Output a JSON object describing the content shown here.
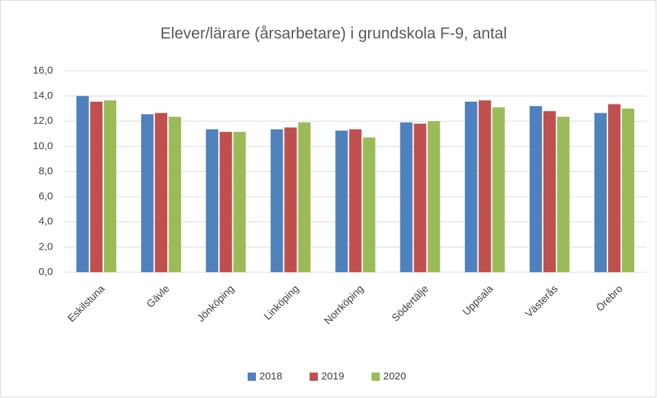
{
  "chart_data": {
    "type": "bar",
    "title": "Elever/lärare (årsarbetare) i grundskola F-9, antal",
    "categories": [
      "Eskilstuna",
      "Gävle",
      "Jönköping",
      "Linköping",
      "Norrköping",
      "Södertälje",
      "Uppsala",
      "Västerås",
      "Örebro"
    ],
    "series": [
      {
        "name": "2018",
        "color": "#4f81bd",
        "values": [
          14.0,
          12.55,
          11.35,
          11.35,
          11.25,
          11.9,
          13.55,
          13.2,
          12.65
        ]
      },
      {
        "name": "2019",
        "color": "#c0504d",
        "values": [
          13.55,
          12.65,
          11.15,
          11.5,
          11.35,
          11.8,
          13.65,
          12.8,
          13.35
        ]
      },
      {
        "name": "2020",
        "color": "#9bbb59",
        "values": [
          13.65,
          12.35,
          11.15,
          11.9,
          10.7,
          12.0,
          13.1,
          12.35,
          13.0
        ]
      }
    ],
    "ylim": [
      0,
      16
    ],
    "yticks": [
      {
        "value": 0,
        "label": "0,0"
      },
      {
        "value": 2,
        "label": "2,0"
      },
      {
        "value": 4,
        "label": "4,0"
      },
      {
        "value": 6,
        "label": "6,0"
      },
      {
        "value": 8,
        "label": "8,0"
      },
      {
        "value": 10,
        "label": "10,0"
      },
      {
        "value": 12,
        "label": "12,0"
      },
      {
        "value": 14,
        "label": "14,0"
      },
      {
        "value": 16,
        "label": "16,0"
      }
    ],
    "grid": true,
    "legend": "bottom"
  }
}
